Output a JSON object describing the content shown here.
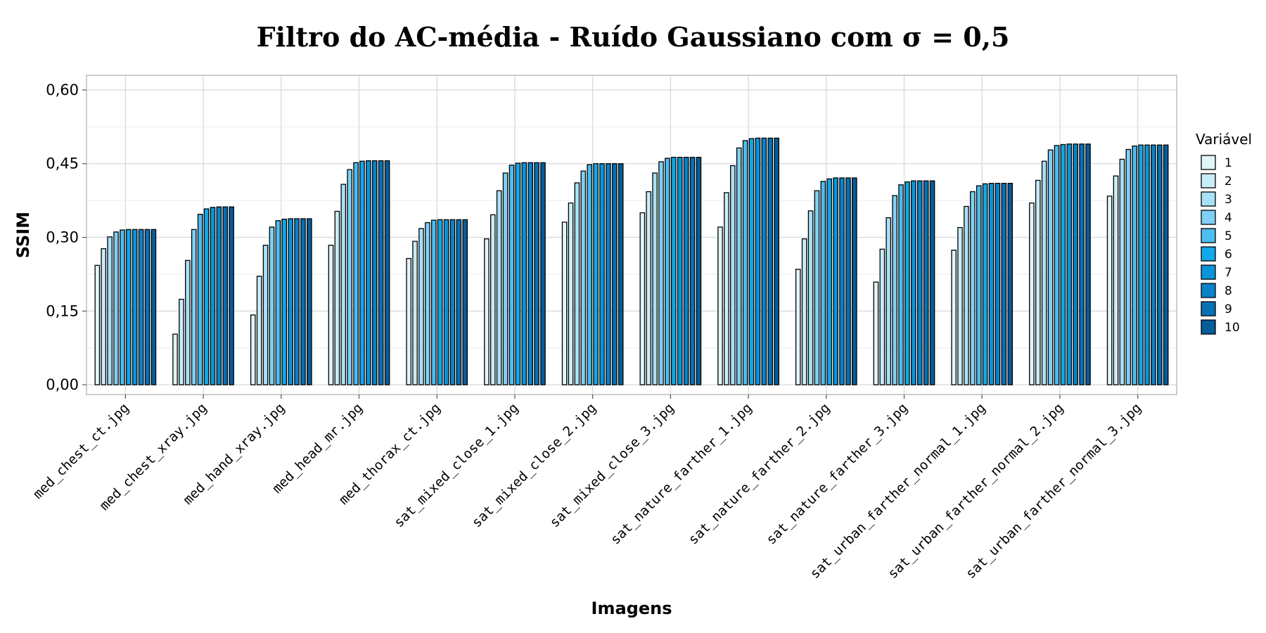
{
  "chart_data": {
    "type": "bar",
    "title": "Filtro do AC-média - Ruído Gaussiano com σ = 0,5",
    "xlabel": "Imagens",
    "ylabel": "SSIM",
    "ylim": [
      -0.02,
      0.63
    ],
    "yticks": [
      0.0,
      0.15,
      0.3,
      0.45,
      0.6
    ],
    "ytick_labels": [
      "0,00",
      "0,15",
      "0,30",
      "0,45",
      "0,60"
    ],
    "grid": true,
    "legend_title": "Variável",
    "legend_position": "right",
    "categories": [
      "med_chest_ct.jpg",
      "med_chest_xray.jpg",
      "med_hand_xray.jpg",
      "med_head_mr.jpg",
      "med_thorax_ct.jpg",
      "sat_mixed_close_1.jpg",
      "sat_mixed_close_2.jpg",
      "sat_mixed_close_3.jpg",
      "sat_nature_farther_1.jpg",
      "sat_nature_farther_2.jpg",
      "sat_nature_farther_3.jpg",
      "sat_urban_farther_normal_1.jpg",
      "sat_urban_farther_normal_2.jpg",
      "sat_urban_farther_normal_3.jpg"
    ],
    "series": [
      {
        "name": "1",
        "color": "#e0f5f7",
        "values": [
          0.243,
          0.103,
          0.142,
          0.284,
          0.257,
          0.297,
          0.331,
          0.35,
          0.321,
          0.235,
          0.209,
          0.274,
          0.37,
          0.384
        ]
      },
      {
        "name": "2",
        "color": "#c8edf8",
        "values": [
          0.277,
          0.174,
          0.221,
          0.353,
          0.292,
          0.346,
          0.37,
          0.393,
          0.391,
          0.297,
          0.276,
          0.32,
          0.416,
          0.425
        ]
      },
      {
        "name": "3",
        "color": "#a8e0f6",
        "values": [
          0.301,
          0.253,
          0.284,
          0.408,
          0.318,
          0.395,
          0.411,
          0.431,
          0.446,
          0.354,
          0.34,
          0.363,
          0.455,
          0.459
        ]
      },
      {
        "name": "4",
        "color": "#7fd0f4",
        "values": [
          0.311,
          0.316,
          0.321,
          0.438,
          0.33,
          0.431,
          0.435,
          0.454,
          0.482,
          0.395,
          0.385,
          0.393,
          0.478,
          0.479
        ]
      },
      {
        "name": "5",
        "color": "#4cbdf0",
        "values": [
          0.315,
          0.347,
          0.334,
          0.452,
          0.335,
          0.447,
          0.448,
          0.461,
          0.497,
          0.414,
          0.407,
          0.405,
          0.487,
          0.486
        ]
      },
      {
        "name": "6",
        "color": "#12a8e8",
        "values": [
          0.316,
          0.358,
          0.337,
          0.455,
          0.336,
          0.451,
          0.45,
          0.463,
          0.501,
          0.419,
          0.413,
          0.409,
          0.489,
          0.488
        ]
      },
      {
        "name": "7",
        "color": "#0b94d8",
        "values": [
          0.316,
          0.361,
          0.338,
          0.456,
          0.336,
          0.452,
          0.45,
          0.463,
          0.502,
          0.421,
          0.415,
          0.41,
          0.49,
          0.488
        ]
      },
      {
        "name": "8",
        "color": "#0a82c8",
        "values": [
          0.316,
          0.362,
          0.338,
          0.456,
          0.336,
          0.452,
          0.45,
          0.463,
          0.502,
          0.421,
          0.415,
          0.41,
          0.49,
          0.488
        ]
      },
      {
        "name": "9",
        "color": "#0870b4",
        "values": [
          0.316,
          0.362,
          0.338,
          0.456,
          0.336,
          0.452,
          0.45,
          0.463,
          0.502,
          0.421,
          0.415,
          0.41,
          0.49,
          0.488
        ]
      },
      {
        "name": "10",
        "color": "#075c9a",
        "values": [
          0.316,
          0.362,
          0.338,
          0.456,
          0.336,
          0.452,
          0.45,
          0.463,
          0.502,
          0.421,
          0.415,
          0.41,
          0.49,
          0.488
        ]
      }
    ]
  }
}
